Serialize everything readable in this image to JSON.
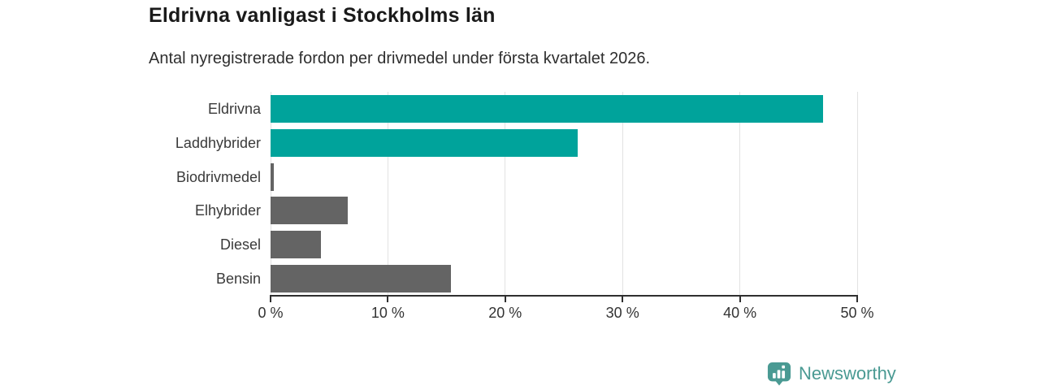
{
  "chart_data": {
    "type": "bar",
    "orientation": "horizontal",
    "title": "Eldrivna vanligast i Stockholms län",
    "subtitle": "Antal nyregistrerade fordon per drivmedel under första kvartalet 2026.",
    "categories": [
      "Eldrivna",
      "Laddhybrider",
      "Biodrivmedel",
      "Elhybrider",
      "Diesel",
      "Bensin"
    ],
    "values": [
      47.1,
      26.2,
      0.3,
      6.6,
      4.3,
      15.4
    ],
    "unit": "%",
    "bar_colors": [
      "#00a39b",
      "#00a39b",
      "#646464",
      "#646464",
      "#646464",
      "#646464"
    ],
    "accent_color": "#00a39b",
    "muted_color": "#646464",
    "xlabel": "",
    "ylabel": "",
    "xlim": [
      0,
      50
    ],
    "xticks": [
      0,
      10,
      20,
      30,
      40,
      50
    ],
    "xtick_labels": [
      "0 %",
      "10 %",
      "20 %",
      "30 %",
      "40 %",
      "50 %"
    ],
    "grid": true,
    "legend_position": "none",
    "gridline_color": "#e2e2e2",
    "axis_color": "#2f2f2f"
  },
  "footer": {
    "brand": "Newsworthy",
    "brand_color": "#4a9a93",
    "logo_icon": "bar-chart-speech-bubble-icon"
  }
}
